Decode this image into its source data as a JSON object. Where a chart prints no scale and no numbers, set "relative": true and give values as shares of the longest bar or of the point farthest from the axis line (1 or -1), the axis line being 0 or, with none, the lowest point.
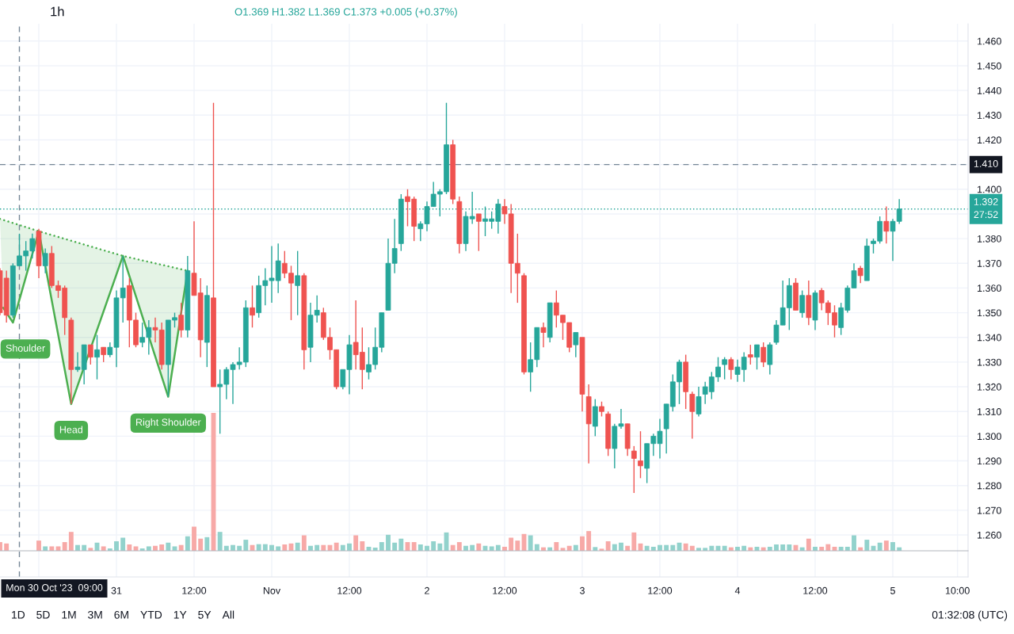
{
  "chart_data": [
    {
      "type": "candlestick",
      "title": "1h",
      "subtitle": "O1.369 H1.382 L1.369 C1.373 +0.005 (+0.37%)",
      "x": [
        "2023-10-30T06:00",
        "2023-10-30T07:00",
        "2023-10-30T08:00",
        "2023-10-30T09:00",
        "2023-10-30T10:00",
        "2023-10-30T11:00",
        "2023-10-30T12:00",
        "2023-10-30T13:00",
        "2023-10-30T14:00",
        "2023-10-30T15:00",
        "2023-10-30T16:00",
        "2023-10-30T17:00",
        "2023-10-30T18:00",
        "2023-10-30T19:00",
        "2023-10-30T20:00",
        "2023-10-30T21:00",
        "2023-10-30T22:00",
        "2023-10-30T23:00",
        "2023-10-31T00:00",
        "2023-10-31T01:00",
        "2023-10-31T02:00",
        "2023-10-31T03:00",
        "2023-10-31T04:00",
        "2023-10-31T05:00",
        "2023-10-31T06:00",
        "2023-10-31T07:00",
        "2023-10-31T08:00",
        "2023-10-31T09:00",
        "2023-10-31T10:00",
        "2023-10-31T11:00",
        "2023-10-31T12:00",
        "2023-10-31T13:00",
        "2023-10-31T14:00",
        "2023-10-31T15:00",
        "2023-10-31T16:00",
        "2023-10-31T17:00",
        "2023-10-31T18:00",
        "2023-10-31T19:00",
        "2023-10-31T20:00",
        "2023-10-31T21:00",
        "2023-10-31T22:00",
        "2023-10-31T23:00",
        "2023-11-01T00:00",
        "2023-11-01T01:00",
        "2023-11-01T02:00",
        "2023-11-01T03:00",
        "2023-11-01T04:00",
        "2023-11-01T05:00",
        "2023-11-01T06:00",
        "2023-11-01T07:00",
        "2023-11-01T08:00",
        "2023-11-01T09:00",
        "2023-11-01T10:00",
        "2023-11-01T11:00",
        "2023-11-01T12:00",
        "2023-11-01T13:00",
        "2023-11-01T14:00",
        "2023-11-01T15:00",
        "2023-11-01T16:00",
        "2023-11-01T17:00",
        "2023-11-01T18:00",
        "2023-11-01T19:00",
        "2023-11-01T20:00",
        "2023-11-01T21:00",
        "2023-11-01T22:00",
        "2023-11-01T23:00",
        "2023-11-02T00:00",
        "2023-11-02T01:00",
        "2023-11-02T02:00",
        "2023-11-02T03:00",
        "2023-11-02T04:00",
        "2023-11-02T05:00",
        "2023-11-02T06:00",
        "2023-11-02T07:00",
        "2023-11-02T08:00",
        "2023-11-02T09:00",
        "2023-11-02T10:00",
        "2023-11-02T11:00",
        "2023-11-02T12:00",
        "2023-11-02T13:00",
        "2023-11-02T14:00",
        "2023-11-02T15:00",
        "2023-11-02T16:00",
        "2023-11-02T17:00",
        "2023-11-02T18:00",
        "2023-11-02T19:00",
        "2023-11-02T20:00",
        "2023-11-02T21:00",
        "2023-11-02T22:00",
        "2023-11-02T23:00",
        "2023-11-03T00:00",
        "2023-11-03T01:00",
        "2023-11-03T02:00",
        "2023-11-03T03:00",
        "2023-11-03T04:00",
        "2023-11-03T05:00",
        "2023-11-03T06:00",
        "2023-11-03T07:00",
        "2023-11-03T08:00",
        "2023-11-03T09:00",
        "2023-11-03T10:00",
        "2023-11-03T11:00",
        "2023-11-03T12:00",
        "2023-11-03T13:00",
        "2023-11-03T14:00",
        "2023-11-03T15:00",
        "2023-11-03T16:00",
        "2023-11-03T17:00",
        "2023-11-03T18:00",
        "2023-11-03T19:00",
        "2023-11-03T20:00",
        "2023-11-03T21:00",
        "2023-11-03T22:00",
        "2023-11-03T23:00",
        "2023-11-04T00:00",
        "2023-11-04T01:00",
        "2023-11-04T02:00",
        "2023-11-04T03:00",
        "2023-11-04T04:00",
        "2023-11-04T05:00",
        "2023-11-04T06:00",
        "2023-11-04T07:00",
        "2023-11-04T08:00",
        "2023-11-04T09:00",
        "2023-11-04T10:00",
        "2023-11-04T11:00",
        "2023-11-04T12:00",
        "2023-11-04T13:00",
        "2023-11-04T14:00",
        "2023-11-04T15:00",
        "2023-11-04T16:00",
        "2023-11-04T17:00",
        "2023-11-04T18:00",
        "2023-11-04T19:00",
        "2023-11-04T20:00",
        "2023-11-04T21:00",
        "2023-11-04T22:00",
        "2023-11-04T23:00",
        "2023-11-05T00:00",
        "2023-11-05T01:00"
      ],
      "ohlc": [
        [
          1.367,
          1.368,
          1.349,
          1.35
        ],
        [
          1.364,
          1.367,
          1.346,
          1.349
        ],
        [
          1.349,
          1.37,
          1.348,
          1.369
        ],
        [
          1.369,
          1.382,
          1.369,
          1.373
        ],
        [
          1.373,
          1.379,
          1.367,
          1.375
        ],
        [
          1.375,
          1.382,
          1.372,
          1.38
        ],
        [
          1.383,
          1.384,
          1.364,
          1.369
        ],
        [
          1.369,
          1.376,
          1.366,
          1.374
        ],
        [
          1.374,
          1.377,
          1.36,
          1.361
        ],
        [
          1.361,
          1.363,
          1.356,
          1.359
        ],
        [
          1.36,
          1.361,
          1.341,
          1.348
        ],
        [
          1.347,
          1.348,
          1.313,
          1.327
        ],
        [
          1.327,
          1.334,
          1.326,
          1.328
        ],
        [
          1.327,
          1.337,
          1.321,
          1.337
        ],
        [
          1.337,
          1.337,
          1.329,
          1.332
        ],
        [
          1.332,
          1.341,
          1.323,
          1.335
        ],
        [
          1.336,
          1.336,
          1.33,
          1.333
        ],
        [
          1.333,
          1.338,
          1.332,
          1.336
        ],
        [
          1.336,
          1.359,
          1.328,
          1.356
        ],
        [
          1.356,
          1.373,
          1.346,
          1.36
        ],
        [
          1.361,
          1.364,
          1.336,
          1.347
        ],
        [
          1.347,
          1.35,
          1.336,
          1.337
        ],
        [
          1.338,
          1.346,
          1.336,
          1.34
        ],
        [
          1.34,
          1.347,
          1.333,
          1.344
        ],
        [
          1.344,
          1.348,
          1.338,
          1.343
        ],
        [
          1.343,
          1.346,
          1.327,
          1.329
        ],
        [
          1.329,
          1.347,
          1.316,
          1.347
        ],
        [
          1.347,
          1.35,
          1.344,
          1.348
        ],
        [
          1.349,
          1.354,
          1.34,
          1.343
        ],
        [
          1.343,
          1.373,
          1.34,
          1.367
        ],
        [
          1.366,
          1.387,
          1.357,
          1.357
        ],
        [
          1.358,
          1.364,
          1.332,
          1.339
        ],
        [
          1.338,
          1.361,
          1.328,
          1.357
        ],
        [
          1.356,
          1.435,
          1.32,
          1.32
        ],
        [
          1.32,
          1.327,
          1.301,
          1.321
        ],
        [
          1.321,
          1.328,
          1.315,
          1.327
        ],
        [
          1.327,
          1.33,
          1.313,
          1.329
        ],
        [
          1.329,
          1.336,
          1.327,
          1.33
        ],
        [
          1.33,
          1.355,
          1.328,
          1.352
        ],
        [
          1.352,
          1.361,
          1.344,
          1.349
        ],
        [
          1.35,
          1.365,
          1.348,
          1.361
        ],
        [
          1.361,
          1.368,
          1.353,
          1.363
        ],
        [
          1.363,
          1.377,
          1.354,
          1.364
        ],
        [
          1.363,
          1.378,
          1.358,
          1.371
        ],
        [
          1.37,
          1.375,
          1.364,
          1.366
        ],
        [
          1.366,
          1.369,
          1.347,
          1.362
        ],
        [
          1.361,
          1.375,
          1.349,
          1.365
        ],
        [
          1.365,
          1.366,
          1.327,
          1.335
        ],
        [
          1.336,
          1.354,
          1.33,
          1.349
        ],
        [
          1.349,
          1.357,
          1.346,
          1.351
        ],
        [
          1.35,
          1.352,
          1.339,
          1.34
        ],
        [
          1.34,
          1.344,
          1.331,
          1.335
        ],
        [
          1.335,
          1.335,
          1.319,
          1.32
        ],
        [
          1.32,
          1.327,
          1.319,
          1.327
        ],
        [
          1.327,
          1.341,
          1.317,
          1.337
        ],
        [
          1.338,
          1.355,
          1.327,
          1.333
        ],
        [
          1.334,
          1.344,
          1.319,
          1.327
        ],
        [
          1.326,
          1.336,
          1.323,
          1.329
        ],
        [
          1.329,
          1.344,
          1.327,
          1.336
        ],
        [
          1.336,
          1.35,
          1.334,
          1.35
        ],
        [
          1.351,
          1.38,
          1.351,
          1.37
        ],
        [
          1.37,
          1.388,
          1.366,
          1.376
        ],
        [
          1.378,
          1.398,
          1.375,
          1.396
        ],
        [
          1.397,
          1.4,
          1.385,
          1.395
        ],
        [
          1.396,
          1.397,
          1.379,
          1.385
        ],
        [
          1.384,
          1.387,
          1.379,
          1.386
        ],
        [
          1.386,
          1.395,
          1.383,
          1.393
        ],
        [
          1.393,
          1.403,
          1.393,
          1.398
        ],
        [
          1.398,
          1.4,
          1.389,
          1.399
        ],
        [
          1.399,
          1.435,
          1.398,
          1.418
        ],
        [
          1.418,
          1.42,
          1.394,
          1.396
        ],
        [
          1.395,
          1.397,
          1.374,
          1.378
        ],
        [
          1.378,
          1.391,
          1.375,
          1.389
        ],
        [
          1.388,
          1.399,
          1.386,
          1.389
        ],
        [
          1.39,
          1.39,
          1.375,
          1.387
        ],
        [
          1.387,
          1.393,
          1.381,
          1.388
        ],
        [
          1.387,
          1.391,
          1.384,
          1.388
        ],
        [
          1.387,
          1.396,
          1.382,
          1.394
        ],
        [
          1.393,
          1.396,
          1.386,
          1.39
        ],
        [
          1.39,
          1.394,
          1.358,
          1.37
        ],
        [
          1.37,
          1.382,
          1.354,
          1.366
        ],
        [
          1.365,
          1.366,
          1.325,
          1.326
        ],
        [
          1.326,
          1.338,
          1.318,
          1.331
        ],
        [
          1.331,
          1.344,
          1.328,
          1.344
        ],
        [
          1.344,
          1.346,
          1.336,
          1.342
        ],
        [
          1.34,
          1.354,
          1.338,
          1.354
        ],
        [
          1.354,
          1.359,
          1.344,
          1.349
        ],
        [
          1.349,
          1.349,
          1.339,
          1.346
        ],
        [
          1.346,
          1.346,
          1.334,
          1.336
        ],
        [
          1.337,
          1.342,
          1.332,
          1.342
        ],
        [
          1.34,
          1.34,
          1.31,
          1.317
        ],
        [
          1.316,
          1.321,
          1.289,
          1.305
        ],
        [
          1.304,
          1.315,
          1.3,
          1.312
        ],
        [
          1.312,
          1.314,
          1.308,
          1.31
        ],
        [
          1.309,
          1.31,
          1.292,
          1.295
        ],
        [
          1.295,
          1.305,
          1.287,
          1.304
        ],
        [
          1.304,
          1.311,
          1.303,
          1.305
        ],
        [
          1.305,
          1.305,
          1.292,
          1.295
        ],
        [
          1.294,
          1.296,
          1.277,
          1.291
        ],
        [
          1.29,
          1.302,
          1.283,
          1.288
        ],
        [
          1.287,
          1.297,
          1.281,
          1.297
        ],
        [
          1.297,
          1.301,
          1.292,
          1.3
        ],
        [
          1.297,
          1.307,
          1.291,
          1.302
        ],
        [
          1.303,
          1.313,
          1.293,
          1.313
        ],
        [
          1.312,
          1.325,
          1.31,
          1.322
        ],
        [
          1.322,
          1.331,
          1.313,
          1.33
        ],
        [
          1.33,
          1.333,
          1.311,
          1.318
        ],
        [
          1.317,
          1.318,
          1.299,
          1.31
        ],
        [
          1.309,
          1.32,
          1.308,
          1.316
        ],
        [
          1.317,
          1.322,
          1.313,
          1.32
        ],
        [
          1.318,
          1.326,
          1.315,
          1.324
        ],
        [
          1.324,
          1.332,
          1.322,
          1.328
        ],
        [
          1.329,
          1.332,
          1.323,
          1.331
        ],
        [
          1.331,
          1.332,
          1.323,
          1.327
        ],
        [
          1.325,
          1.331,
          1.322,
          1.328
        ],
        [
          1.327,
          1.334,
          1.322,
          1.332
        ],
        [
          1.333,
          1.337,
          1.329,
          1.332
        ],
        [
          1.332,
          1.337,
          1.327,
          1.337
        ],
        [
          1.336,
          1.338,
          1.328,
          1.33
        ],
        [
          1.329,
          1.338,
          1.325,
          1.337
        ],
        [
          1.338,
          1.347,
          1.337,
          1.345
        ],
        [
          1.345,
          1.363,
          1.345,
          1.352
        ],
        [
          1.352,
          1.364,
          1.343,
          1.361
        ],
        [
          1.362,
          1.364,
          1.351,
          1.351
        ],
        [
          1.35,
          1.359,
          1.348,
          1.357
        ],
        [
          1.357,
          1.363,
          1.345,
          1.348
        ],
        [
          1.347,
          1.359,
          1.343,
          1.358
        ],
        [
          1.359,
          1.36,
          1.351,
          1.354
        ],
        [
          1.354,
          1.355,
          1.345,
          1.35
        ],
        [
          1.35,
          1.353,
          1.34,
          1.345
        ],
        [
          1.344,
          1.354,
          1.341,
          1.352
        ],
        [
          1.351,
          1.361,
          1.35,
          1.36
        ],
        [
          1.36,
          1.37,
          1.36,
          1.367
        ],
        [
          1.368,
          1.369,
          1.362,
          1.365
        ],
        [
          1.363,
          1.38,
          1.363,
          1.377
        ],
        [
          1.378,
          1.38,
          1.374,
          1.379
        ],
        [
          1.379,
          1.389,
          1.378,
          1.387
        ],
        [
          1.387,
          1.393,
          1.378,
          1.383
        ],
        [
          1.383,
          1.388,
          1.371,
          1.387
        ],
        [
          1.387,
          1.396,
          1.386,
          1.392
        ]
      ],
      "colors": [
        "#ef5350",
        "#ef5350",
        "#26a69a",
        "#26a69a",
        "#26a69a",
        "#26a69a",
        "#ef5350",
        "#26a69a",
        "#ef5350",
        "#ef5350",
        "#ef5350",
        "#ef5350",
        "#26a69a",
        "#26a69a",
        "#ef5350",
        "#26a69a",
        "#ef5350",
        "#26a69a",
        "#26a69a",
        "#26a69a",
        "#ef5350",
        "#ef5350",
        "#26a69a",
        "#26a69a",
        "#ef5350",
        "#ef5350",
        "#26a69a",
        "#26a69a",
        "#ef5350",
        "#26a69a",
        "#ef5350",
        "#ef5350",
        "#26a69a",
        "#ef5350",
        "#26a69a",
        "#26a69a",
        "#26a69a",
        "#26a69a",
        "#26a69a",
        "#ef5350",
        "#26a69a",
        "#26a69a",
        "#26a69a",
        "#26a69a",
        "#ef5350",
        "#ef5350",
        "#26a69a",
        "#ef5350",
        "#26a69a",
        "#26a69a",
        "#ef5350",
        "#ef5350",
        "#ef5350",
        "#26a69a",
        "#26a69a",
        "#ef5350",
        "#ef5350",
        "#26a69a",
        "#26a69a",
        "#26a69a",
        "#26a69a",
        "#26a69a",
        "#26a69a",
        "#ef5350",
        "#ef5350",
        "#26a69a",
        "#26a69a",
        "#26a69a",
        "#26a69a",
        "#26a69a",
        "#ef5350",
        "#ef5350",
        "#26a69a",
        "#26a69a",
        "#ef5350",
        "#26a69a",
        "#26a69a",
        "#26a69a",
        "#ef5350",
        "#ef5350",
        "#ef5350",
        "#ef5350",
        "#26a69a",
        "#26a69a",
        "#ef5350",
        "#26a69a",
        "#ef5350",
        "#ef5350",
        "#ef5350",
        "#26a69a",
        "#ef5350",
        "#ef5350",
        "#26a69a",
        "#ef5350",
        "#ef5350",
        "#26a69a",
        "#26a69a",
        "#ef5350",
        "#ef5350",
        "#ef5350",
        "#26a69a",
        "#26a69a",
        "#26a69a",
        "#26a69a",
        "#26a69a",
        "#26a69a",
        "#ef5350",
        "#ef5350",
        "#26a69a",
        "#26a69a",
        "#26a69a",
        "#26a69a",
        "#26a69a",
        "#ef5350",
        "#26a69a",
        "#26a69a",
        "#ef5350",
        "#26a69a",
        "#ef5350",
        "#26a69a",
        "#26a69a",
        "#26a69a",
        "#26a69a",
        "#ef5350",
        "#26a69a",
        "#ef5350",
        "#26a69a",
        "#ef5350",
        "#ef5350",
        "#ef5350",
        "#26a69a",
        "#26a69a",
        "#26a69a",
        "#ef5350",
        "#26a69a",
        "#26a69a",
        "#26a69a",
        "#ef5350",
        "#26a69a",
        "#26a69a"
      ],
      "series": [
        {
          "type": "line",
          "color": "#4caf50",
          "x": [
            "2023-10-30T06:30",
            "2023-10-30T08:00",
            "2023-10-30T12:00",
            "2023-10-30T17:00",
            "2023-10-31T01:00",
            "2023-10-31T08:00",
            "2023-10-31T11:00"
          ],
          "values": [
            1.352,
            1.346,
            1.383,
            1.313,
            1.373,
            1.316,
            1.367
          ]
        },
        {
          "type": "line",
          "color": "#4caf50",
          "line_style": "dotted",
          "x": [
            "2023-10-30T06:00",
            "2023-10-30T12:00",
            "2023-10-31T01:00",
            "2023-10-31T11:00"
          ],
          "values": [
            1.388,
            1.383,
            1.373,
            1.367
          ]
        }
      ],
      "xlim": [
        "2023-10-30T06:00",
        "2023-11-05T11:38"
      ],
      "xticks": [
        {
          "value": "2023-10-30T12:00",
          "label": null
        },
        {
          "value": "2023-10-31",
          "label": "31"
        },
        {
          "value": "2023-10-31T12:00",
          "label": "12:00"
        },
        {
          "value": "2023-11-01",
          "label": "Nov"
        },
        {
          "value": "2023-11-01T12:00",
          "label": "12:00"
        },
        {
          "value": "2023-11-02",
          "label": "2"
        },
        {
          "value": "2023-11-02T12:00",
          "label": "12:00"
        },
        {
          "value": "2023-11-03",
          "label": "3"
        },
        {
          "value": "2023-11-03T12:00",
          "label": "12:00"
        },
        {
          "value": "2023-11-04",
          "label": "4"
        },
        {
          "value": "2023-11-04T12:00",
          "label": "12:00"
        },
        {
          "value": "2023-11-05",
          "label": "5"
        },
        {
          "value": "2023-11-05T10:00",
          "label": "10:00"
        }
      ],
      "ylim": [
        1.243,
        1.467
      ],
      "yticks": [
        {
          "value": 1.26,
          "label": "1.260"
        },
        {
          "value": 1.27,
          "label": "1.270"
        },
        {
          "value": 1.28,
          "label": "1.280"
        },
        {
          "value": 1.29,
          "label": "1.290"
        },
        {
          "value": 1.3,
          "label": "1.300"
        },
        {
          "value": 1.31,
          "label": "1.310"
        },
        {
          "value": 1.32,
          "label": "1.320"
        },
        {
          "value": 1.33,
          "label": "1.330"
        },
        {
          "value": 1.34,
          "label": "1.340"
        },
        {
          "value": 1.35,
          "label": "1.350"
        },
        {
          "value": 1.36,
          "label": "1.360"
        },
        {
          "value": 1.37,
          "label": "1.370"
        },
        {
          "value": 1.38,
          "label": "1.380"
        },
        {
          "value": 1.39,
          "label": null
        },
        {
          "value": 1.4,
          "label": "1.400"
        },
        {
          "value": 1.41,
          "label": null
        },
        {
          "value": 1.42,
          "label": "1.420"
        },
        {
          "value": 1.43,
          "label": "1.430"
        },
        {
          "value": 1.44,
          "label": "1.440"
        },
        {
          "value": 1.45,
          "label": "1.450"
        },
        {
          "value": 1.46,
          "label": "1.460"
        }
      ],
      "grid": true,
      "ref_lines": [
        {
          "axis": "x",
          "value": "2023-10-30T09:00",
          "label": "Mon 30 Oct '23  09:00",
          "color": "#758696",
          "line_style": "dashed"
        },
        {
          "axis": "y",
          "value": 1.41,
          "label": "1.410",
          "color": "#758696",
          "line_style": "dashed"
        },
        {
          "axis": "y",
          "value": 1.392,
          "label": "1.392\n27:52",
          "color": "#26a69a",
          "line_style": "dotted"
        }
      ],
      "annotations": [
        {
          "text": "Shoulder",
          "x": "2023-10-30T08:00",
          "y": 1.346
        },
        {
          "text": "Head",
          "x": "2023-10-30T17:00",
          "y": 1.313
        },
        {
          "text": "Right Shoulder",
          "x": "2023-10-31T08:00",
          "y": 1.316
        },
        "1D",
        "5D",
        "1M",
        "3M",
        "6M",
        "YTD",
        "1Y",
        "5Y",
        "All",
        "01:32:08 (UTC)"
      ]
    },
    {
      "type": "bar",
      "relative": true,
      "tick_labels": false,
      "xlim": [
        "2023-10-30T06:00",
        "2023-11-05T11:38"
      ],
      "x": [
        "2023-10-30T06:00",
        "2023-10-30T07:00",
        "2023-10-30T08:00",
        "2023-10-30T09:00",
        "2023-10-30T10:00",
        "2023-10-30T11:00",
        "2023-10-30T12:00",
        "2023-10-30T13:00",
        "2023-10-30T14:00",
        "2023-10-30T15:00",
        "2023-10-30T16:00",
        "2023-10-30T17:00",
        "2023-10-30T18:00",
        "2023-10-30T19:00",
        "2023-10-30T20:00",
        "2023-10-30T21:00",
        "2023-10-30T22:00",
        "2023-10-30T23:00",
        "2023-10-31T00:00",
        "2023-10-31T01:00",
        "2023-10-31T02:00",
        "2023-10-31T03:00",
        "2023-10-31T04:00",
        "2023-10-31T05:00",
        "2023-10-31T06:00",
        "2023-10-31T07:00",
        "2023-10-31T08:00",
        "2023-10-31T09:00",
        "2023-10-31T10:00",
        "2023-10-31T11:00",
        "2023-10-31T12:00",
        "2023-10-31T13:00",
        "2023-10-31T14:00",
        "2023-10-31T15:00",
        "2023-10-31T16:00",
        "2023-10-31T17:00",
        "2023-10-31T18:00",
        "2023-10-31T19:00",
        "2023-10-31T20:00",
        "2023-10-31T21:00",
        "2023-10-31T22:00",
        "2023-10-31T23:00",
        "2023-11-01T00:00",
        "2023-11-01T01:00",
        "2023-11-01T02:00",
        "2023-11-01T03:00",
        "2023-11-01T04:00",
        "2023-11-01T05:00",
        "2023-11-01T06:00",
        "2023-11-01T07:00",
        "2023-11-01T08:00",
        "2023-11-01T09:00",
        "2023-11-01T10:00",
        "2023-11-01T11:00",
        "2023-11-01T12:00",
        "2023-11-01T13:00",
        "2023-11-01T14:00",
        "2023-11-01T15:00",
        "2023-11-01T16:00",
        "2023-11-01T17:00",
        "2023-11-01T18:00",
        "2023-11-01T19:00",
        "2023-11-01T20:00",
        "2023-11-01T21:00",
        "2023-11-01T22:00",
        "2023-11-01T23:00",
        "2023-11-02T00:00",
        "2023-11-02T01:00",
        "2023-11-02T02:00",
        "2023-11-02T03:00",
        "2023-11-02T04:00",
        "2023-11-02T05:00",
        "2023-11-02T06:00",
        "2023-11-02T07:00",
        "2023-11-02T08:00",
        "2023-11-02T09:00",
        "2023-11-02T10:00",
        "2023-11-02T11:00",
        "2023-11-02T12:00",
        "2023-11-02T13:00",
        "2023-11-02T14:00",
        "2023-11-02T15:00",
        "2023-11-02T16:00",
        "2023-11-02T17:00",
        "2023-11-02T18:00",
        "2023-11-02T19:00",
        "2023-11-02T20:00",
        "2023-11-02T21:00",
        "2023-11-02T22:00",
        "2023-11-02T23:00",
        "2023-11-03T00:00",
        "2023-11-03T01:00",
        "2023-11-03T02:00",
        "2023-11-03T03:00",
        "2023-11-03T04:00",
        "2023-11-03T05:00",
        "2023-11-03T06:00",
        "2023-11-03T07:00",
        "2023-11-03T08:00",
        "2023-11-03T09:00",
        "2023-11-03T10:00",
        "2023-11-03T11:00",
        "2023-11-03T12:00",
        "2023-11-03T13:00",
        "2023-11-03T14:00",
        "2023-11-03T15:00",
        "2023-11-03T16:00",
        "2023-11-03T17:00",
        "2023-11-03T18:00",
        "2023-11-03T19:00",
        "2023-11-03T20:00",
        "2023-11-03T21:00",
        "2023-11-03T22:00",
        "2023-11-03T23:00",
        "2023-11-04T00:00",
        "2023-11-04T01:00",
        "2023-11-04T02:00",
        "2023-11-04T03:00",
        "2023-11-04T04:00",
        "2023-11-04T05:00",
        "2023-11-04T06:00",
        "2023-11-04T07:00",
        "2023-11-04T08:00",
        "2023-11-04T09:00",
        "2023-11-04T10:00",
        "2023-11-04T11:00",
        "2023-11-04T12:00",
        "2023-11-04T13:00",
        "2023-11-04T14:00",
        "2023-11-04T15:00",
        "2023-11-04T16:00",
        "2023-11-04T17:00",
        "2023-11-04T18:00",
        "2023-11-04T19:00",
        "2023-11-04T20:00",
        "2023-11-04T21:00",
        "2023-11-04T22:00",
        "2023-11-04T23:00",
        "2023-11-05T00:00",
        "2023-11-05T01:00"
      ],
      "values": [
        0.063,
        0.053,
        null,
        null,
        null,
        null,
        0.074,
        0.032,
        0.032,
        0.032,
        0.063,
        0.137,
        0.042,
        0.042,
        0.021,
        0.059,
        0.032,
        0.017,
        0.069,
        0.095,
        0.046,
        0.032,
        0.017,
        0.032,
        0.036,
        0.046,
        0.059,
        0.032,
        0.042,
        0.105,
        0.175,
        0.088,
        0.099,
        1,
        0.137,
        0.036,
        0.042,
        0.036,
        0.08,
        0.042,
        0.048,
        0.048,
        0.042,
        0.032,
        0.046,
        0.053,
        0.059,
        0.112,
        0.036,
        0.042,
        0.042,
        0.042,
        0.059,
        0.042,
        0.053,
        0.112,
        0.069,
        0.029,
        0.023,
        0.063,
        0.116,
        0.059,
        0.088,
        0.063,
        0.063,
        0.046,
        0.036,
        0.069,
        0.053,
        0.133,
        0.042,
        0.063,
        0.036,
        0.042,
        0.053,
        0.036,
        0.032,
        0.042,
        0.029,
        0.095,
        0.074,
        0.122,
        0.112,
        0.048,
        0.025,
        0.025,
        0.063,
        0.021,
        0.036,
        0.042,
        0.105,
        0.143,
        0.027,
        0.015,
        0.069,
        0.048,
        0.059,
        0.036,
        0.133,
        0.053,
        0.036,
        0.029,
        0.042,
        0.042,
        0.042,
        0.059,
        0.053,
        0.036,
        0.021,
        0.021,
        0.036,
        0.036,
        0.036,
        0.025,
        0.029,
        0.036,
        0.025,
        0.029,
        0.025,
        0.029,
        0.046,
        0.046,
        0.046,
        0.042,
        0.025,
        0.088,
        0.029,
        0.029,
        0.048,
        0.029,
        0.029,
        0.029,
        0.112,
        0.025,
        0.08,
        0.036,
        0.059,
        0.074,
        0.063,
        0.025
      ],
      "colors": [
        "#f7a9a7",
        "#f7a9a7",
        "#92d2cc",
        "#92d2cc",
        "#92d2cc",
        "#92d2cc",
        "#f7a9a7",
        "#92d2cc",
        "#f7a9a7",
        "#f7a9a7",
        "#f7a9a7",
        "#f7a9a7",
        "#92d2cc",
        "#92d2cc",
        "#f7a9a7",
        "#92d2cc",
        "#f7a9a7",
        "#92d2cc",
        "#92d2cc",
        "#92d2cc",
        "#f7a9a7",
        "#f7a9a7",
        "#92d2cc",
        "#92d2cc",
        "#f7a9a7",
        "#f7a9a7",
        "#92d2cc",
        "#92d2cc",
        "#f7a9a7",
        "#92d2cc",
        "#f7a9a7",
        "#f7a9a7",
        "#92d2cc",
        "#f7a9a7",
        "#92d2cc",
        "#92d2cc",
        "#92d2cc",
        "#92d2cc",
        "#92d2cc",
        "#f7a9a7",
        "#92d2cc",
        "#92d2cc",
        "#92d2cc",
        "#92d2cc",
        "#f7a9a7",
        "#f7a9a7",
        "#92d2cc",
        "#f7a9a7",
        "#92d2cc",
        "#92d2cc",
        "#f7a9a7",
        "#f7a9a7",
        "#f7a9a7",
        "#92d2cc",
        "#92d2cc",
        "#f7a9a7",
        "#f7a9a7",
        "#92d2cc",
        "#92d2cc",
        "#92d2cc",
        "#92d2cc",
        "#92d2cc",
        "#92d2cc",
        "#f7a9a7",
        "#f7a9a7",
        "#92d2cc",
        "#92d2cc",
        "#92d2cc",
        "#92d2cc",
        "#92d2cc",
        "#f7a9a7",
        "#f7a9a7",
        "#92d2cc",
        "#92d2cc",
        "#f7a9a7",
        "#92d2cc",
        "#92d2cc",
        "#92d2cc",
        "#f7a9a7",
        "#f7a9a7",
        "#f7a9a7",
        "#f7a9a7",
        "#92d2cc",
        "#92d2cc",
        "#f7a9a7",
        "#92d2cc",
        "#f7a9a7",
        "#f7a9a7",
        "#f7a9a7",
        "#92d2cc",
        "#f7a9a7",
        "#f7a9a7",
        "#92d2cc",
        "#f7a9a7",
        "#f7a9a7",
        "#92d2cc",
        "#92d2cc",
        "#f7a9a7",
        "#f7a9a7",
        "#f7a9a7",
        "#92d2cc",
        "#92d2cc",
        "#92d2cc",
        "#92d2cc",
        "#92d2cc",
        "#92d2cc",
        "#f7a9a7",
        "#f7a9a7",
        "#92d2cc",
        "#92d2cc",
        "#92d2cc",
        "#92d2cc",
        "#92d2cc",
        "#f7a9a7",
        "#92d2cc",
        "#92d2cc",
        "#f7a9a7",
        "#92d2cc",
        "#f7a9a7",
        "#92d2cc",
        "#92d2cc",
        "#92d2cc",
        "#92d2cc",
        "#f7a9a7",
        "#92d2cc",
        "#f7a9a7",
        "#92d2cc",
        "#f7a9a7",
        "#f7a9a7",
        "#f7a9a7",
        "#92d2cc",
        "#92d2cc",
        "#92d2cc",
        "#f7a9a7",
        "#92d2cc",
        "#92d2cc",
        "#92d2cc",
        "#f7a9a7",
        "#92d2cc",
        "#92d2cc"
      ]
    }
  ]
}
